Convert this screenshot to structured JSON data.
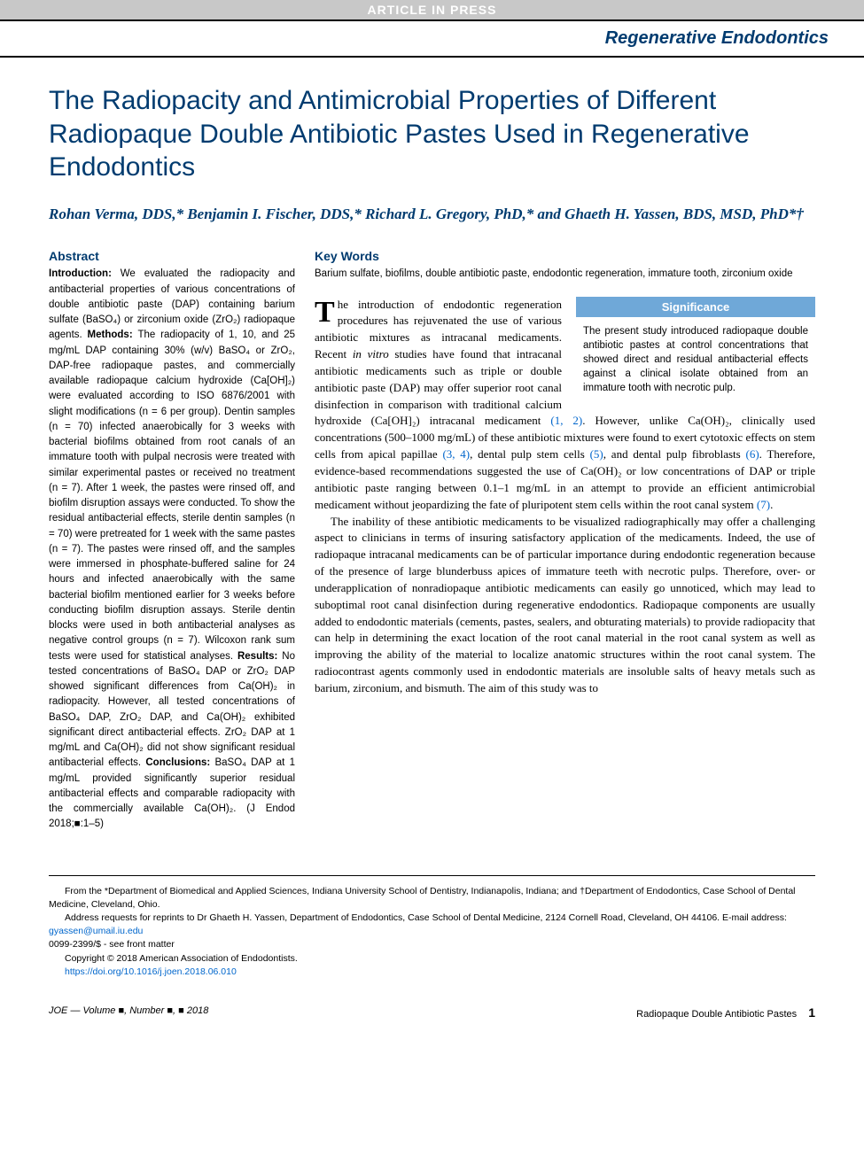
{
  "banner": "ARTICLE IN PRESS",
  "category": "Regenerative Endodontics",
  "title": "The Radiopacity and Antimicrobial Properties of Different Radiopaque Double Antibiotic Pastes Used in Regenerative Endodontics",
  "authors": "Rohan Verma, DDS,* Benjamin I. Fischer, DDS,* Richard L. Gregory, PhD,* and Ghaeth H. Yassen, BDS, MSD, PhD*†",
  "abstract_head": "Abstract",
  "abstract_intro_label": "Introduction: ",
  "abstract_intro": "We evaluated the radiopacity and antibacterial properties of various concentrations of double antibiotic paste (DAP) containing barium sulfate (BaSO₄) or zirconium oxide (ZrO₂) radiopaque agents. ",
  "abstract_methods_label": "Methods: ",
  "abstract_methods": "The radiopacity of 1, 10, and 25 mg/mL DAP containing 30% (w/v) BaSO₄ or ZrO₂, DAP-free radiopaque pastes, and commercially available radiopaque calcium hydroxide (Ca[OH]₂) were evaluated according to ISO 6876/2001 with slight modifications (n = 6 per group). Dentin samples (n = 70) infected anaerobically for 3 weeks with bacterial biofilms obtained from root canals of an immature tooth with pulpal necrosis were treated with similar experimental pastes or received no treatment (n = 7). After 1 week, the pastes were rinsed off, and biofilm disruption assays were conducted. To show the residual antibacterial effects, sterile dentin samples (n = 70) were pretreated for 1 week with the same pastes (n = 7). The pastes were rinsed off, and the samples were immersed in phosphate-buffered saline for 24 hours and infected anaerobically with the same bacterial biofilm mentioned earlier for 3 weeks before conducting biofilm disruption assays. Sterile dentin blocks were used in both antibacterial analyses as negative control groups (n = 7). Wilcoxon rank sum tests were used for statistical analyses. ",
  "abstract_results_label": "Results: ",
  "abstract_results": "No tested concentrations of BaSO₄ DAP or ZrO₂ DAP showed significant differences from Ca(OH)₂ in radiopacity. However, all tested concentrations of BaSO₄ DAP, ZrO₂ DAP, and Ca(OH)₂ exhibited significant direct antibacterial effects. ZrO₂ DAP at 1 mg/mL and Ca(OH)₂ did not show significant residual antibacterial effects. ",
  "abstract_conclusions_label": "Conclusions: ",
  "abstract_conclusions": "BaSO₄ DAP at 1 mg/mL provided significantly superior residual antibacterial effects and comparable radiopacity with the commercially available Ca(OH)₂. (J Endod 2018;■:1–5)",
  "keywords_head": "Key Words",
  "keywords": "Barium sulfate, biofilms, double antibiotic paste, endodontic regeneration, immature tooth, zirconium oxide",
  "significance_head": "Significance",
  "significance_body": "The present study introduced radiopaque double antibiotic pastes at control concentrations that showed direct and residual antibacterial effects against a clinical isolate obtained from an immature tooth with necrotic pulp.",
  "para1_a": "he introduction of endodontic regeneration procedures has rejuvenated the use of various antibiotic mixtures as intracanal medicaments. Recent ",
  "para1_b": "in vitro",
  "para1_c": " studies have found that intracanal antibiotic medicaments such as triple or double antibiotic paste (DAP) may offer superior root canal disinfection in comparison with traditional calcium hydroxide (Ca[OH]₂) intracanal medicament ",
  "ref12": "(1, 2)",
  "para1_d": ". However, unlike Ca(OH)₂, clinically used concentrations (500–1000 mg/mL) of these antibiotic mixtures were found to exert cytotoxic effects on stem cells from apical papillae ",
  "ref34": "(3, 4)",
  "para1_e": ", dental pulp stem cells ",
  "ref5": "(5)",
  "para1_f": ", and dental pulp fibroblasts ",
  "ref6": "(6)",
  "para1_g": ". Therefore, evidence-based recommendations suggested the use of Ca(OH)₂ or low concentrations of DAP or triple antibiotic paste ranging between 0.1–1 mg/mL in an attempt to provide an efficient antimicrobial medicament without jeopardizing the fate of pluripotent stem cells within the root canal system ",
  "ref7": "(7)",
  "para1_h": ".",
  "para2": "The inability of these antibiotic medicaments to be visualized radiographically may offer a challenging aspect to clinicians in terms of insuring satisfactory application of the medicaments. Indeed, the use of radiopaque intracanal medicaments can be of particular importance during endodontic regeneration because of the presence of large blunderbuss apices of immature teeth with necrotic pulps. Therefore, over- or underapplication of nonradiopaque antibiotic medicaments can easily go unnoticed, which may lead to suboptimal root canal disinfection during regenerative endodontics. Radiopaque components are usually added to endodontic materials (cements, pastes, sealers, and obturating materials) to provide radiopacity that can help in determining the exact location of the root canal material in the root canal system as well as improving the ability of the material to localize anatomic structures within the root canal system. The radiocontrast agents commonly used in endodontic materials are insoluble salts of heavy metals such as barium, zirconium, and bismuth. The aim of this study was to",
  "affil1": "From the *Department of Biomedical and Applied Sciences, Indiana University School of Dentistry, Indianapolis, Indiana; and †Department of Endodontics, Case School of Dental Medicine, Cleveland, Ohio.",
  "affil2a": "Address requests for reprints to Dr Ghaeth H. Yassen, Department of Endodontics, Case School of Dental Medicine, 2124 Cornell Road, Cleveland, OH 44106. E-mail address: ",
  "affil2_email": "gyassen@umail.iu.edu",
  "affil3": "0099-2399/$ - see front matter",
  "affil4": "Copyright © 2018 American Association of Endodontists.",
  "affil5": "https://doi.org/10.1016/j.joen.2018.06.010",
  "footer_left": "JOE — Volume ■, Number ■, ■ 2018",
  "footer_right": "Radiopaque Double Antibiotic Pastes",
  "footer_page": "1",
  "colors": {
    "brand_blue": "#003b6f",
    "banner_gray": "#c8c8c8",
    "sig_blue": "#6fa8d8",
    "link_blue": "#0066cc"
  },
  "fonts": {
    "title_size": 30,
    "authors_size": 17,
    "abstract_size": 11.5,
    "body_size": 13,
    "affil_size": 10.5
  }
}
